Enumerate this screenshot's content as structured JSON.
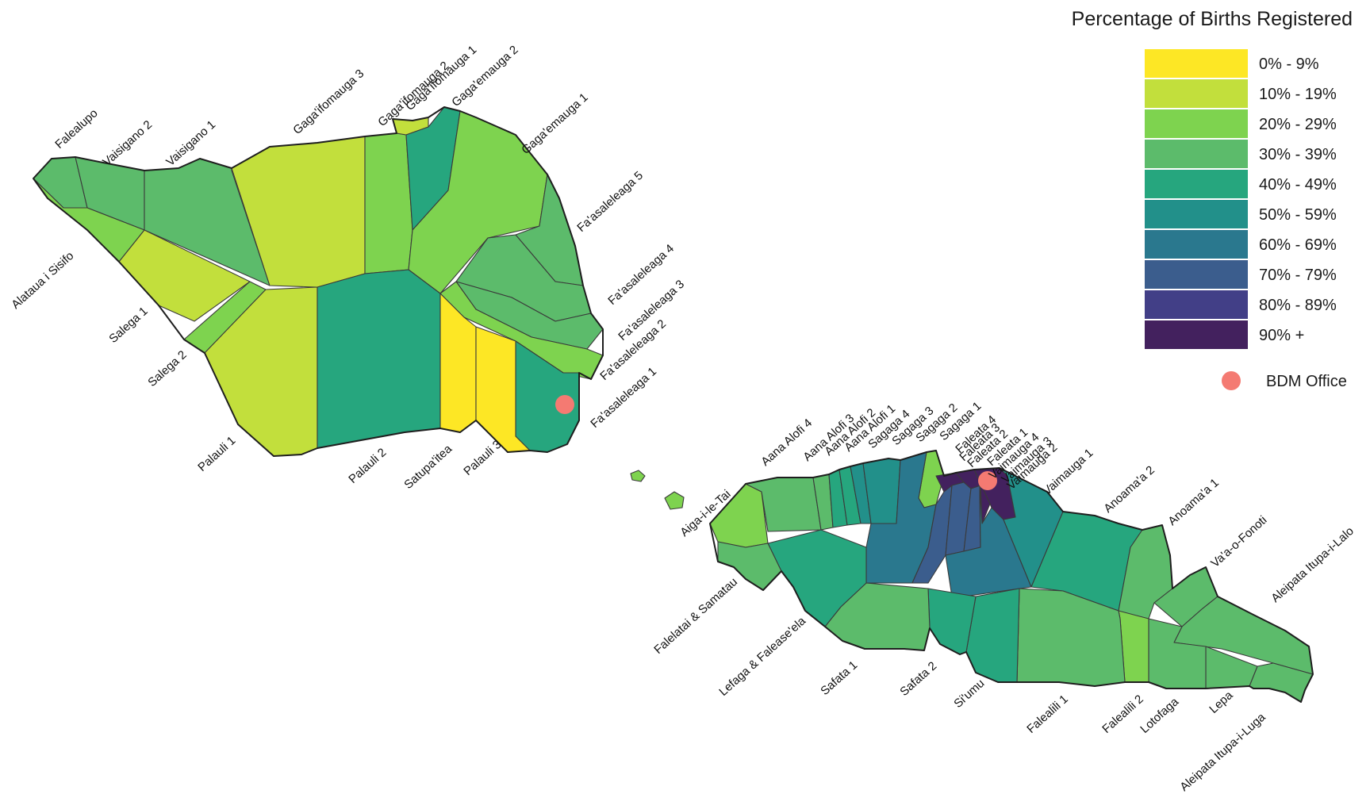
{
  "legend": {
    "title": "Percentage of Births Registered",
    "classes": [
      {
        "label": "0%  -  9%",
        "color": "#fde725"
      },
      {
        "label": "10% - 19%",
        "color": "#c2df3c"
      },
      {
        "label": "20% - 29%",
        "color": "#7ed34f"
      },
      {
        "label": "30% - 39%",
        "color": "#5cbb6b"
      },
      {
        "label": "40% - 49%",
        "color": "#26a67e"
      },
      {
        "label": "50% - 59%",
        "color": "#22908a"
      },
      {
        "label": "60% - 69%",
        "color": "#2a788e"
      },
      {
        "label": "70% - 79%",
        "color": "#3b5d8d"
      },
      {
        "label": "80% - 89%",
        "color": "#423f87"
      },
      {
        "label": "90% +",
        "color": "#43215e"
      }
    ],
    "office_label": "BDM Office",
    "office_color": "#f47a72"
  },
  "regions": [
    {
      "id": "falealupo",
      "name": "Falealupo",
      "class": 3
    },
    {
      "id": "vaisigano-2",
      "name": "Vaisigano 2",
      "class": 3
    },
    {
      "id": "vaisigano-1",
      "name": "Vaisigano 1",
      "class": 3
    },
    {
      "id": "alataua",
      "name": "Alataua i Sisifo",
      "class": 2
    },
    {
      "id": "salega-1",
      "name": "Salega 1",
      "class": 1
    },
    {
      "id": "salega-2",
      "name": "Salega 2",
      "class": 2
    },
    {
      "id": "palauli-1",
      "name": "Palauli 1",
      "class": 1
    },
    {
      "id": "gagaifomauga-3",
      "name": "Gaga'ifomauga 3",
      "class": 1
    },
    {
      "id": "gagaifomauga-2",
      "name": "Gaga'ifomauga 2",
      "class": 2
    },
    {
      "id": "gagaifomauga-1",
      "name": "Gaga'ifomauga 1",
      "class": 1
    },
    {
      "id": "gagaemauga-2",
      "name": "Gaga'emauga 2",
      "class": 4
    },
    {
      "id": "gagaemauga-1",
      "name": "Gaga'emauga 1",
      "class": 2
    },
    {
      "id": "faasaleleaga-5",
      "name": "Fa'asaleleaga 5",
      "class": 3
    },
    {
      "id": "faasaleleaga-4",
      "name": "Fa'asaleleaga 4",
      "class": 3
    },
    {
      "id": "faasaleleaga-3",
      "name": "Fa'asaleleaga 3",
      "class": 3
    },
    {
      "id": "faasaleleaga-2",
      "name": "Fa'asaleleaga 2",
      "class": 2
    },
    {
      "id": "faasaleleaga-1",
      "name": "Fa'asaleleaga 1",
      "class": 4
    },
    {
      "id": "palauli-2",
      "name": "Palauli 2",
      "class": 4
    },
    {
      "id": "satupaitea",
      "name": "Satupa'itea",
      "class": 0
    },
    {
      "id": "palauli-3",
      "name": "Palauli 3",
      "class": 0
    },
    {
      "id": "aiga-i-le-tai",
      "name": "Aiga-i-le-Tai",
      "class": 2
    },
    {
      "id": "aana-alofi-4",
      "name": "Aana Alofi 4",
      "class": 3
    },
    {
      "id": "aana-alofi-3",
      "name": "Aana Alofi 3",
      "class": 3
    },
    {
      "id": "aana-alofi-2",
      "name": "Aana Alofi 2",
      "class": 4
    },
    {
      "id": "aana-alofi-1",
      "name": "Aana Alofi 1",
      "class": 4
    },
    {
      "id": "sagaga-4",
      "name": "Sagaga 4",
      "class": 5
    },
    {
      "id": "sagaga-3",
      "name": "Sagaga 3",
      "class": 5
    },
    {
      "id": "sagaga-2",
      "name": "Sagaga 2",
      "class": 2
    },
    {
      "id": "sagaga-1",
      "name": "Sagaga 1",
      "class": 6
    },
    {
      "id": "faleata-4",
      "name": "Faleata 4",
      "class": 9
    },
    {
      "id": "faleata-3",
      "name": "Faleata 3",
      "class": 7
    },
    {
      "id": "faleata-2",
      "name": "Faleata 2",
      "class": 7
    },
    {
      "id": "faleata-1",
      "name": "Faleata 1",
      "class": 7
    },
    {
      "id": "vaimauga-4",
      "name": "Vaimauga 4",
      "class": 9
    },
    {
      "id": "vaimauga-3",
      "name": "Vaimauga 3",
      "class": 6
    },
    {
      "id": "vaimauga-2",
      "name": "Vaimauga 2",
      "class": 9
    },
    {
      "id": "vaimauga-1",
      "name": "Vaimauga 1",
      "class": 5
    },
    {
      "id": "anoamaa-2",
      "name": "Anoama'a 2",
      "class": 4
    },
    {
      "id": "anoamaa-1",
      "name": "Anoama'a 1",
      "class": 3
    },
    {
      "id": "vaa-o-fonoti",
      "name": "Va'a-o-Fonoti",
      "class": 3
    },
    {
      "id": "aleipata-lalo",
      "name": "Aleipata Itupa-i-Lalo",
      "class": 3
    },
    {
      "id": "aleipata-luga",
      "name": "Aleipata Itupa-i-Luga",
      "class": 3
    },
    {
      "id": "lepa",
      "name": "Lepa",
      "class": 3
    },
    {
      "id": "lotofaga",
      "name": "Lotofaga",
      "class": 3
    },
    {
      "id": "falealili-2",
      "name": "Falealili 2",
      "class": 2
    },
    {
      "id": "falealili-1",
      "name": "Falealili 1",
      "class": 3
    },
    {
      "id": "siumu",
      "name": "Si'umu",
      "class": 4
    },
    {
      "id": "safata-2",
      "name": "Safata 2",
      "class": 4
    },
    {
      "id": "safata-1",
      "name": "Safata 1",
      "class": 3
    },
    {
      "id": "lefaga",
      "name": "Lefaga & Falease'ela",
      "class": 4
    },
    {
      "id": "falelatai",
      "name": "Falelatai & Samatau",
      "class": 3
    }
  ]
}
